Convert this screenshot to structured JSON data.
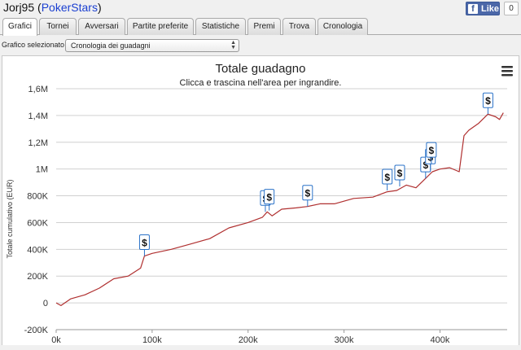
{
  "header": {
    "player": "Jorj95",
    "site": "PokerStars",
    "like_label": "Like",
    "like_count": "0"
  },
  "tabs": [
    {
      "label": "Grafici",
      "active": true
    },
    {
      "label": "Tornei"
    },
    {
      "label": "Avversari"
    },
    {
      "label": "Partite preferite"
    },
    {
      "label": "Statistiche"
    },
    {
      "label": "Premi"
    },
    {
      "label": "Trova"
    },
    {
      "label": "Cronologia"
    }
  ],
  "graph_selector": {
    "label": "Grafico selezionato",
    "value": "Cronologia dei guadagni"
  },
  "chart_data": {
    "type": "line",
    "title": "Totale guadagno",
    "subtitle": "Clicca e trascina nell'area per ingrandire.",
    "ylabel": "Totale cumulativo (EUR)",
    "xlabel": "",
    "x_ticks": [
      "0k",
      "100k",
      "200k",
      "300k",
      "400k"
    ],
    "x_tick_values": [
      0,
      100000,
      200000,
      300000,
      400000
    ],
    "y_ticks": [
      "-200K",
      "0",
      "200K",
      "400K",
      "600K",
      "800K",
      "1M",
      "1,2M",
      "1,4M",
      "1,6M"
    ],
    "y_tick_values": [
      -200000,
      0,
      200000,
      400000,
      600000,
      800000,
      1000000,
      1200000,
      1400000,
      1600000
    ],
    "xlim": [
      0,
      470000
    ],
    "ylim": [
      -200000,
      1600000
    ],
    "grid": "horizontal",
    "legend": "none",
    "line_color": "#b03030",
    "marker_color": "#2a72c8",
    "series": [
      {
        "x": [
          0,
          5000,
          15000,
          30000,
          45000,
          60000,
          75000,
          88000,
          92000,
          100000,
          120000,
          140000,
          160000,
          180000,
          200000,
          215000,
          220000,
          225000,
          235000,
          250000,
          262000,
          275000,
          290000,
          310000,
          330000,
          345000,
          355000,
          365000,
          375000,
          385000,
          392000,
          400000,
          410000,
          420000,
          425000,
          430000,
          440000,
          450000,
          458000,
          462000,
          466000
        ],
        "values": [
          0,
          -20000,
          30000,
          60000,
          110000,
          180000,
          200000,
          260000,
          350000,
          370000,
          400000,
          440000,
          480000,
          560000,
          600000,
          640000,
          680000,
          650000,
          700000,
          710000,
          720000,
          740000,
          740000,
          780000,
          790000,
          830000,
          840000,
          880000,
          860000,
          930000,
          980000,
          1000000,
          1010000,
          980000,
          1250000,
          1290000,
          1340000,
          1410000,
          1390000,
          1370000,
          1420000
        ]
      }
    ],
    "markers": [
      {
        "x": 92000,
        "y": 350000,
        "label": "$"
      },
      {
        "x": 218000,
        "y": 680000,
        "label": "$"
      },
      {
        "x": 222000,
        "y": 690000,
        "label": "$"
      },
      {
        "x": 262000,
        "y": 720000,
        "label": "$"
      },
      {
        "x": 345000,
        "y": 840000,
        "label": "$"
      },
      {
        "x": 358000,
        "y": 870000,
        "label": "$"
      },
      {
        "x": 385000,
        "y": 930000,
        "label": "$"
      },
      {
        "x": 390000,
        "y": 990000,
        "label": "$"
      },
      {
        "x": 391000,
        "y": 1040000,
        "label": "$"
      },
      {
        "x": 450000,
        "y": 1410000,
        "label": "$"
      }
    ]
  }
}
